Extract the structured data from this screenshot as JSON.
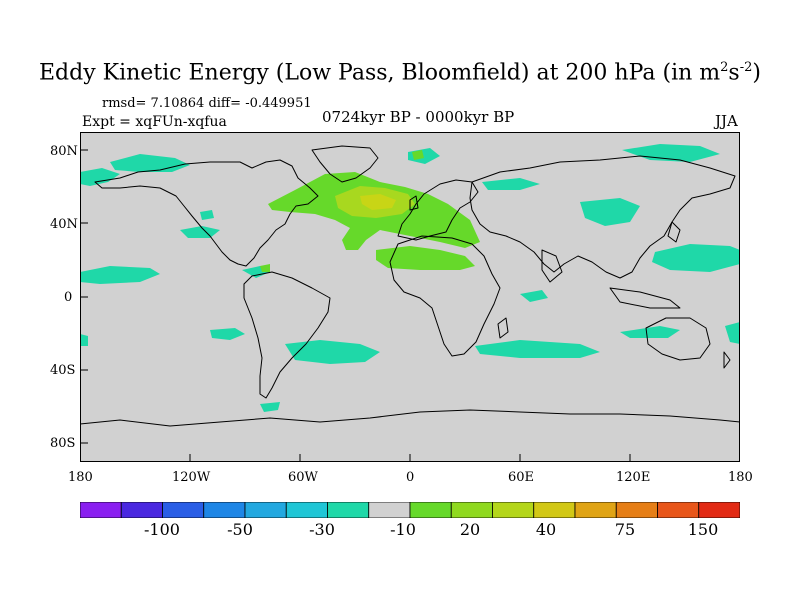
{
  "title_main": "Eddy Kinetic Energy (Low Pass, Bloomfield) at 200 hPa (in m",
  "title_sup1": "2",
  "title_mid": "s",
  "title_sup2": "-2",
  "title_end": ")",
  "rmsd_text": "rmsd= 7.10864 diff= -0.449951",
  "expt_text": "Expt = xqFUn-xqfua",
  "period_text": "0724kyr BP - 0000kyr BP",
  "season_text": "JJA",
  "colors": {
    "land_background": "#d1d1d1",
    "cyan": "#1fd8a8",
    "green": "#66d92a",
    "yellow_green": "#a8d81f",
    "yellow": "#c8d516",
    "coast": "#000000"
  },
  "map": {
    "lat_labels": [
      "80N",
      "40N",
      "0",
      "40S",
      "80S"
    ],
    "lon_labels": [
      "180",
      "120W",
      "60W",
      "0",
      "60E",
      "120E",
      "180"
    ]
  },
  "colorbar": {
    "colors": [
      "#8a1ff0",
      "#4a28e0",
      "#2a5ee6",
      "#1e86e6",
      "#22a8e0",
      "#1fc6d6",
      "#1fd8a8",
      "#d1d1d1",
      "#66d92a",
      "#8fd91f",
      "#b4d61a",
      "#d2c816",
      "#e0a416",
      "#e67e16",
      "#e8561a",
      "#e22a14"
    ],
    "labels": [
      "-100",
      "-50",
      "-30",
      "-10",
      "20",
      "40",
      "75",
      "150"
    ]
  }
}
